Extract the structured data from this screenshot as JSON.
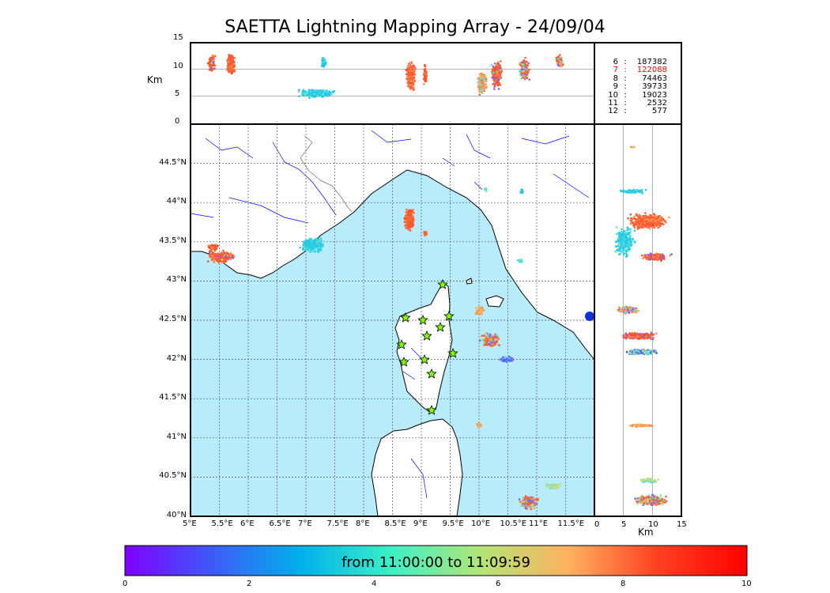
{
  "title": "SAETTA Lightning Mapping Array - 24/09/04",
  "top_panel": {
    "ylabel": "Km",
    "yticks": [
      "15",
      "10",
      "5",
      "0"
    ]
  },
  "right_panel": {
    "xlabel": "Km",
    "xticks": [
      "0",
      "5",
      "10",
      "15"
    ]
  },
  "map": {
    "lat_ticks": [
      "44.5°N",
      "44°N",
      "43.5°N",
      "43°N",
      "42.5°N",
      "42°N",
      "41.5°N",
      "41°N",
      "40.5°N",
      "40°N"
    ],
    "lon_ticks": [
      "5°E",
      "5.5°E",
      "6°E",
      "6.5°E",
      "7°E",
      "7.5°E",
      "8°E",
      "8.5°E",
      "9°E",
      "9.5°E",
      "10°E",
      "10.5°E",
      "11°E",
      "11.5°E"
    ],
    "sea_color": "#b8ecfb",
    "station_color": "#7fff00"
  },
  "station_counts": {
    "rows": [
      {
        "n": "6",
        "sep": ":",
        "count": "187382",
        "color": "#000000"
      },
      {
        "n": "7",
        "sep": ":",
        "count": "122088",
        "color": "#ff0000"
      },
      {
        "n": "8",
        "sep": ":",
        "count": "74463",
        "color": "#000000"
      },
      {
        "n": "9",
        "sep": ":",
        "count": "39733",
        "color": "#000000"
      },
      {
        "n": "10",
        "sep": ":",
        "count": "19023",
        "color": "#000000"
      },
      {
        "n": "11",
        "sep": ":",
        "count": "2532",
        "color": "#000000"
      },
      {
        "n": "12",
        "sep": ":",
        "count": "577",
        "color": "#000000"
      }
    ]
  },
  "colorbar": {
    "label": "from 11:00:00 to 11:09:59",
    "ticks": [
      "0",
      "2",
      "4",
      "6",
      "8",
      "10"
    ],
    "colors": [
      "#7f00ff",
      "#3c5cf8",
      "#00b2eb",
      "#3cf0c6",
      "#b2e676",
      "#ffb060",
      "#ff4020",
      "#ff0000"
    ]
  }
}
